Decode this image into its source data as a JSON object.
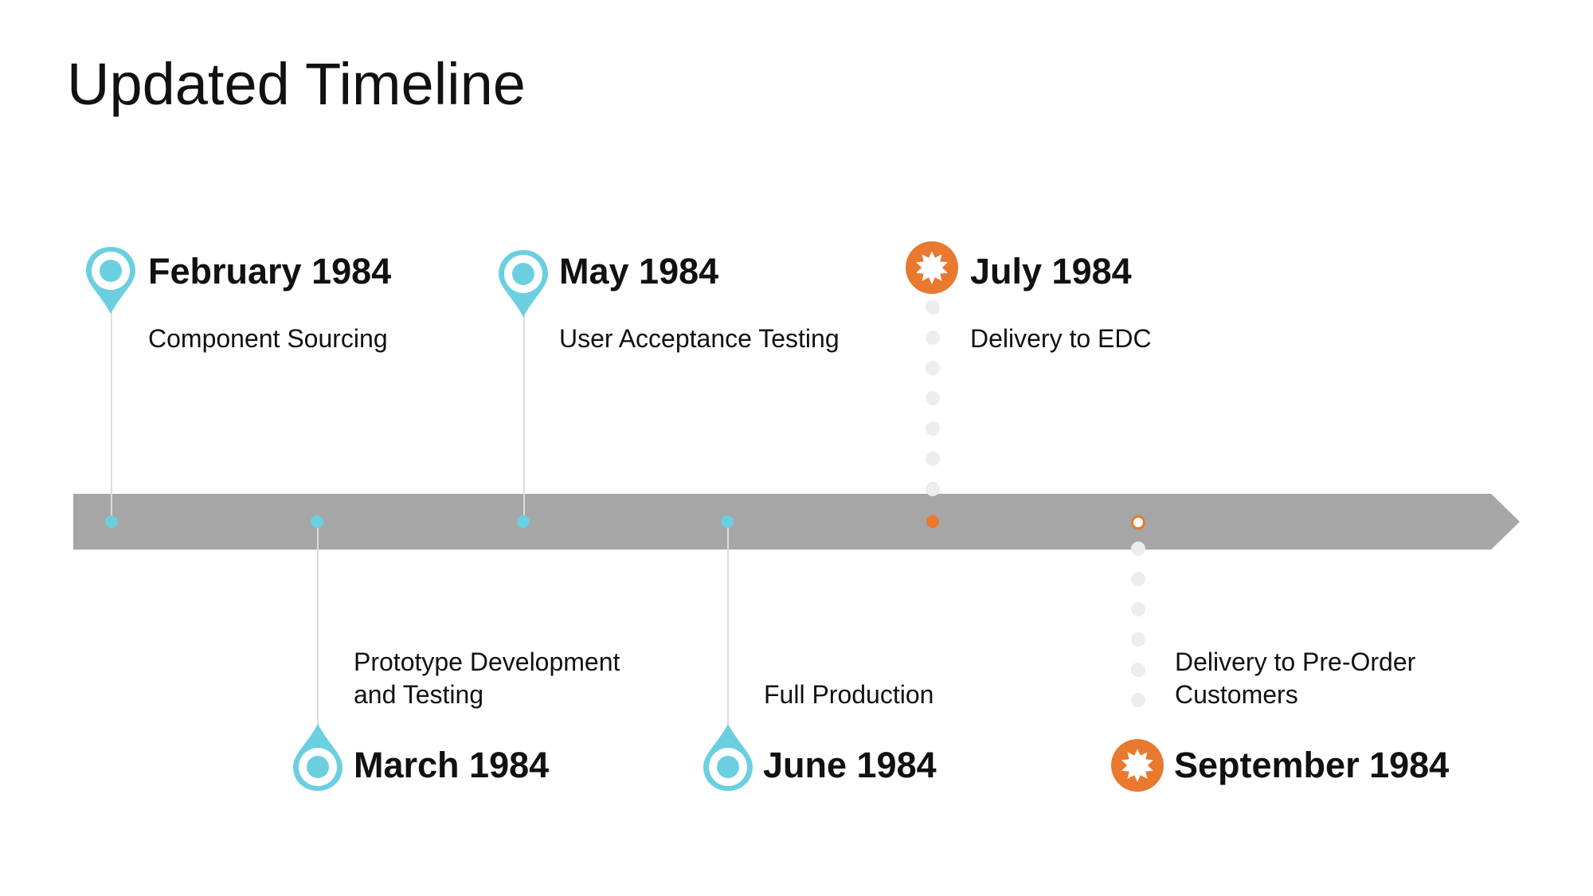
{
  "title": "Updated Timeline",
  "colors": {
    "accent": "#6bcfe0",
    "highlight": "#e8792f",
    "track": "#a6a6a6"
  },
  "milestones": [
    {
      "date": "February 1984",
      "desc": [
        "Component Sourcing"
      ],
      "marker": "pin-icon",
      "side": "top"
    },
    {
      "date": "March 1984",
      "desc": [
        "Prototype Development",
        "and Testing"
      ],
      "marker": "pin-icon",
      "side": "bottom"
    },
    {
      "date": "May 1984",
      "desc": [
        "User Acceptance Testing"
      ],
      "marker": "pin-icon",
      "side": "top"
    },
    {
      "date": "June 1984",
      "desc": [
        "Full Production"
      ],
      "marker": "pin-icon",
      "side": "bottom"
    },
    {
      "date": "July 1984",
      "desc": [
        "Delivery to EDC"
      ],
      "marker": "starburst-icon",
      "side": "top"
    },
    {
      "date": "September 1984",
      "desc": [
        "Delivery to Pre-Order",
        "Customers"
      ],
      "marker": "starburst-icon",
      "side": "bottom"
    }
  ]
}
